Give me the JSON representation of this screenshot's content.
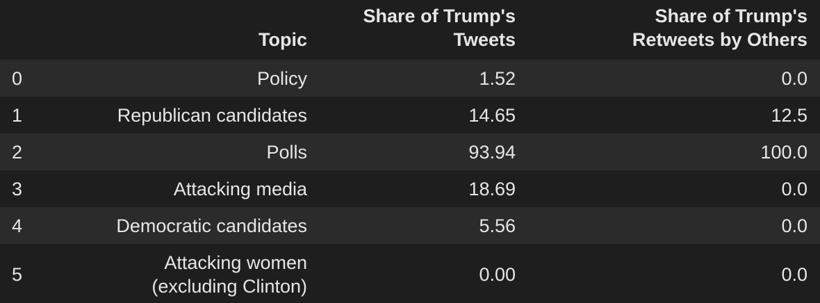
{
  "table": {
    "headers": {
      "index": "",
      "topic": "Topic",
      "tweets_line1": "Share of Trump's",
      "tweets_line2": "Tweets",
      "retweets_line1": "Share of Trump's",
      "retweets_line2": "Retweets by Others"
    },
    "rows": [
      {
        "index": "0",
        "topic": "Policy",
        "tweets": "1.52",
        "retweets": "0.0"
      },
      {
        "index": "1",
        "topic": "Republican candidates",
        "tweets": "14.65",
        "retweets": "12.5"
      },
      {
        "index": "2",
        "topic": "Polls",
        "tweets": "93.94",
        "retweets": "100.0"
      },
      {
        "index": "3",
        "topic": "Attacking media",
        "tweets": "18.69",
        "retweets": "0.0"
      },
      {
        "index": "4",
        "topic": "Democratic candidates",
        "tweets": "5.56",
        "retweets": "0.0"
      },
      {
        "index": "5",
        "topic_line1": "Attacking women",
        "topic_line2": "(excluding Clinton)",
        "tweets": "0.00",
        "retweets": "0.0"
      }
    ]
  }
}
